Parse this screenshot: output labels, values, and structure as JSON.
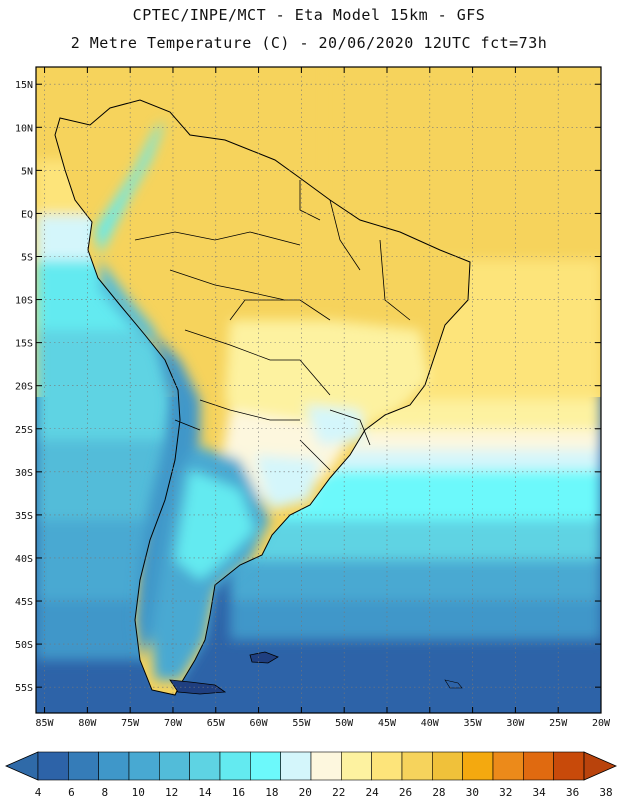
{
  "header": {
    "line1": "CPTEC/INPE/MCT -  Eta Model 15km - GFS",
    "line2": "2 Metre Temperature (C) - 20/06/2020 12UTC fct=73h"
  },
  "axes": {
    "lat_labels": [
      "15N",
      "10N",
      "5N",
      "EQ",
      "5S",
      "10S",
      "15S",
      "20S",
      "25S",
      "30S",
      "35S",
      "40S",
      "45S",
      "50S",
      "55S"
    ],
    "lat_values": [
      15,
      10,
      5,
      0,
      -5,
      -10,
      -15,
      -20,
      -25,
      -30,
      -35,
      -40,
      -45,
      -50,
      -55
    ],
    "lon_labels": [
      "85W",
      "80W",
      "75W",
      "70W",
      "65W",
      "60W",
      "55W",
      "50W",
      "45W",
      "40W",
      "35W",
      "30W",
      "25W",
      "20W"
    ],
    "lon_values": [
      -85,
      -80,
      -75,
      -70,
      -65,
      -60,
      -55,
      -50,
      -45,
      -40,
      -35,
      -30,
      -25,
      -20
    ],
    "lat_range": [
      -58,
      17
    ],
    "lon_range": [
      -86,
      -20
    ],
    "grid": "dotted"
  },
  "colorbar": {
    "labels": [
      "4",
      "6",
      "8",
      "10",
      "12",
      "14",
      "16",
      "18",
      "20",
      "22",
      "24",
      "26",
      "28",
      "30",
      "32",
      "34",
      "36",
      "38"
    ],
    "colors": [
      "#2d63a8",
      "#357cb8",
      "#3f97c9",
      "#48a9d2",
      "#52bcd9",
      "#5ed3e3",
      "#63eaf0",
      "#6cf9fb",
      "#d4f6fb",
      "#fdf7de",
      "#fdf2a0",
      "#fde47a",
      "#f6d35c",
      "#f0c13a",
      "#f4a90f",
      "#ec8a1a",
      "#e06a10",
      "#c84a0a"
    ],
    "left_arrow_color": "#2f6aa8",
    "right_arrow_color": "#b9430c"
  },
  "map_colors": {
    "ocean_cold": "#2d63a8",
    "ocean_mid": "#48a9d2",
    "ocean_cool": "#5ed3e3",
    "ocean_warm": "#fde47a",
    "land_warm": "#f6d35c",
    "land_mild": "#fdf2a0",
    "andes": "#52bcd9",
    "land_line": "#000000"
  }
}
